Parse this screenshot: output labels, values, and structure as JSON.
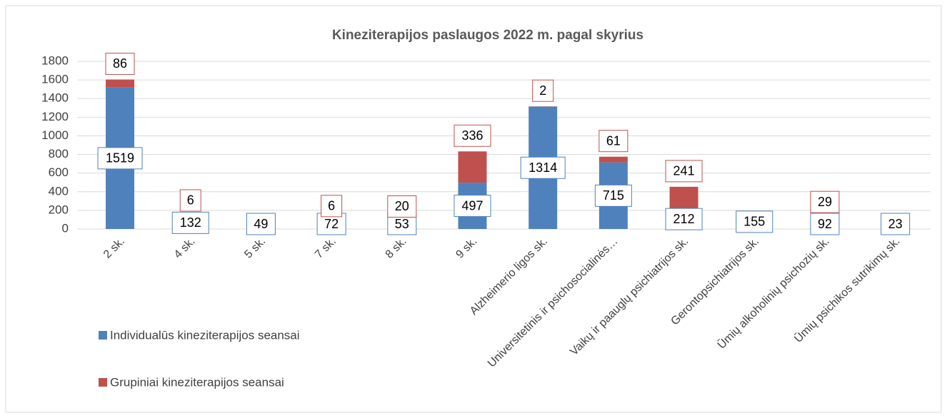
{
  "chart_data": {
    "type": "stacked_bar",
    "title": "Kineziterapijos paslaugos 2022 m. pagal skyrius",
    "categories": [
      "2 sk.",
      "4 sk.",
      "5 sk.",
      "7 sk.",
      "8 sk.",
      "9 sk.",
      "Alzheimerio ligos sk.",
      "Universitetinis ir psichosocialinės…",
      "Vaikų ir paauglų psichiatrijos sk.",
      "Gerontopsichiatrijos sk.",
      "Ūmių alkoholinių psichozių sk.",
      "Ūmių psichikos sutrikimų sk."
    ],
    "series": [
      {
        "name": "Individualūs kineziterapijos seansai",
        "color": "#4f81bd",
        "values": [
          1519,
          132,
          49,
          72,
          53,
          497,
          1314,
          715,
          212,
          155,
          92,
          23
        ]
      },
      {
        "name": "Grupiniai kineziterapijos seansai",
        "color": "#c0504d",
        "values": [
          86,
          6,
          null,
          6,
          20,
          336,
          2,
          61,
          241,
          null,
          29,
          null
        ]
      }
    ],
    "ylim": [
      0,
      1800
    ],
    "yticks": [
      0,
      200,
      400,
      600,
      800,
      1000,
      1200,
      1400,
      1600,
      1800
    ],
    "grid": true,
    "legend": "left"
  }
}
